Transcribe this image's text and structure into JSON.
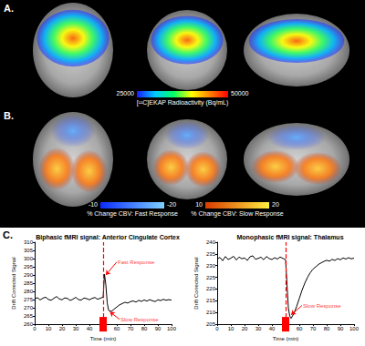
{
  "panel_labels": [
    "A.",
    "B.",
    "C."
  ],
  "colorbars": [
    {
      "label": "[¹¹C]EKAP Radioactivity (Bq/mL)",
      "ticks": [
        25000,
        50000
      ],
      "colors": [
        "#1a1aff",
        "#00c8ff",
        "#00ff66",
        "#ffff00",
        "#ff8000",
        "#ff0000"
      ]
    },
    {
      "label": "% Change CBV: Fast Response",
      "ticks": [
        -10,
        -20
      ],
      "colors": [
        "#0a2cff",
        "#7fd0ff"
      ]
    },
    {
      "label": "% Change CBV: Slow Response",
      "ticks": [
        10,
        20
      ],
      "colors": [
        "#d83a00",
        "#ffee40"
      ]
    }
  ],
  "chart_data": [
    {
      "type": "line",
      "title": "Biphasic fMRI signal: Anterior Cingulate Cortex",
      "x_label": "Time (min)",
      "y_label": "Drift Corrected Signal",
      "color": "#000000",
      "x": [
        0,
        2,
        4,
        6,
        8,
        10,
        12,
        14,
        16,
        18,
        20,
        22,
        24,
        26,
        28,
        30,
        32,
        34,
        36,
        38,
        40,
        42,
        44,
        46,
        48,
        50,
        51,
        52,
        53,
        54,
        56,
        58,
        60,
        62,
        64,
        66,
        68,
        70,
        72,
        74,
        76,
        78,
        80,
        82,
        84,
        86,
        88,
        90,
        92,
        94,
        96,
        98,
        100
      ],
      "values": [
        275.5,
        276.2,
        274.8,
        275.9,
        276.5,
        275.1,
        274.6,
        275.8,
        276.9,
        275.4,
        274.9,
        276.1,
        275.7,
        274.5,
        275.3,
        276.4,
        275.0,
        274.7,
        276.0,
        275.6,
        274.9,
        275.8,
        276.3,
        275.2,
        275.9,
        276.5,
        290.5,
        284,
        273,
        268.5,
        267.8,
        269.2,
        270.5,
        271.8,
        272.6,
        273.4,
        272.9,
        273.8,
        274.2,
        273.5,
        274.6,
        273.9,
        274.8,
        274.1,
        275.0,
        274.3,
        273.8,
        274.9,
        274.4,
        275.2,
        274.6,
        275.0,
        274.7
      ],
      "xlim": [
        0,
        100
      ],
      "xticks": [
        0,
        10,
        20,
        30,
        40,
        50,
        60,
        70,
        80,
        90,
        100
      ],
      "ylim": [
        260,
        310
      ],
      "yticks": [
        260,
        265,
        270,
        275,
        280,
        285,
        290,
        295,
        300,
        305,
        310
      ],
      "event_x": 50,
      "annotations": [
        {
          "text": "Fast Response",
          "x": 60,
          "y": 298,
          "target_x": 52,
          "target_y": 290
        },
        {
          "text": "Slow Response",
          "x": 62,
          "y": 263,
          "target_x": 55,
          "target_y": 267.5
        }
      ]
    },
    {
      "type": "line",
      "title": "Monophasic fMRI signal: Thalamus",
      "x_label": "Time (min)",
      "y_label": "Drift Corrected Signal",
      "color": "#000000",
      "x": [
        0,
        2,
        4,
        6,
        8,
        10,
        12,
        14,
        16,
        18,
        20,
        22,
        24,
        26,
        28,
        30,
        32,
        34,
        36,
        38,
        40,
        42,
        44,
        46,
        48,
        50,
        51,
        52,
        53,
        54,
        56,
        58,
        60,
        62,
        64,
        66,
        68,
        70,
        72,
        74,
        76,
        78,
        80,
        82,
        84,
        86,
        88,
        90,
        92,
        94,
        96,
        98,
        100
      ],
      "values": [
        232.8,
        233.5,
        232.1,
        233.9,
        232.6,
        233.2,
        234.0,
        232.4,
        233.7,
        232.9,
        233.3,
        232.2,
        233.8,
        234.2,
        232.7,
        233.1,
        233.6,
        232.5,
        233.9,
        233.0,
        232.6,
        233.4,
        232.8,
        233.7,
        233.1,
        232.5,
        222,
        212,
        208.5,
        207.5,
        209.5,
        212.5,
        216,
        219.5,
        222.5,
        225,
        227,
        228.5,
        229.5,
        230.5,
        231.2,
        231.8,
        232.3,
        231.9,
        232.7,
        232.2,
        233.0,
        232.5,
        233.3,
        232.8,
        233.4,
        232.9,
        233.2
      ],
      "xlim": [
        0,
        100
      ],
      "xticks": [
        0,
        10,
        20,
        30,
        40,
        50,
        60,
        70,
        80,
        90,
        100
      ],
      "ylim": [
        205,
        240
      ],
      "yticks": [
        205,
        210,
        215,
        220,
        225,
        230,
        235,
        240
      ],
      "event_x": 50,
      "annotations": [
        {
          "text": "Slow Response",
          "x": 62,
          "y": 213,
          "target_x": 54,
          "target_y": 209
        }
      ]
    }
  ]
}
